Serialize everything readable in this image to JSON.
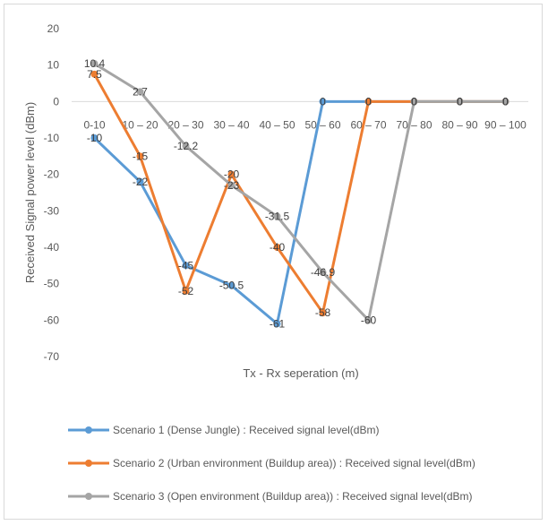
{
  "chart_data": {
    "type": "line",
    "title": "",
    "xlabel": "Tx - Rx seperation (m)",
    "ylabel": "Received Signal power level (dBm)",
    "ylim": [
      -70,
      20
    ],
    "yticks": [
      20,
      10,
      0,
      -10,
      -20,
      -30,
      -40,
      -50,
      -60,
      -70
    ],
    "categories": [
      "0-10",
      "10 – 20",
      "20 – 30",
      "30 – 40",
      "40 – 50",
      "50 – 60",
      "60 – 70",
      "70 – 80",
      "80 – 90",
      "90 – 100"
    ],
    "grid": false,
    "legend": "bottom",
    "series": [
      {
        "name": "Scenario 1 (Dense Jungle) : Received signal level(dBm)",
        "color": "#5b9bd5",
        "values": [
          -10,
          -22,
          -45,
          -50.5,
          -61,
          0,
          0,
          0,
          0,
          0
        ],
        "labels": [
          "-10",
          "-22",
          "-45",
          "-50.5",
          "-61",
          "0",
          "0",
          "0",
          "0",
          "0"
        ]
      },
      {
        "name": "Scenario 2 (Urban environment (Buildup area)) : Received signal level(dBm)",
        "color": "#ed7d31",
        "values": [
          7.5,
          -15,
          -52,
          -20,
          -40,
          -58,
          0,
          0,
          0,
          0
        ],
        "labels": [
          "7.5",
          "-15",
          "-52",
          "-20",
          "-40",
          "-58",
          "0",
          "0",
          "0",
          "0"
        ]
      },
      {
        "name": "Scenario 3 (Open environment (Buildup area)) : Received signal level(dBm)",
        "color": "#a5a5a5",
        "values": [
          10.4,
          2.7,
          -12.2,
          -23,
          -31.5,
          -46.9,
          -60,
          0,
          0,
          0
        ],
        "labels": [
          "10.4",
          "2.7",
          "-12.2",
          "-23",
          "-31.5",
          "-46.9",
          "-60",
          "0",
          "0",
          "0"
        ]
      }
    ]
  }
}
